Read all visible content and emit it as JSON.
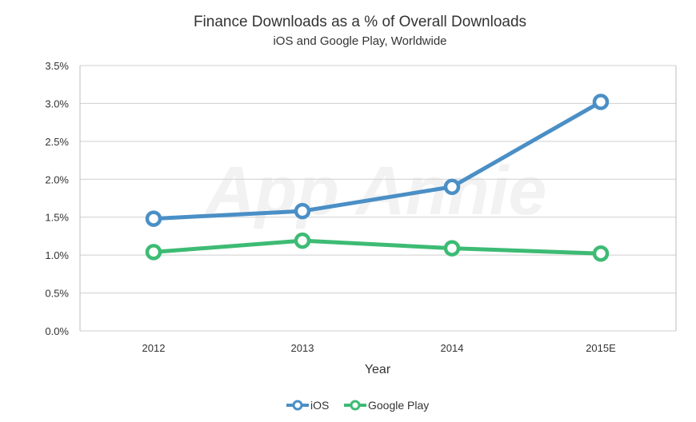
{
  "watermark": "App Annie",
  "chart_data": {
    "type": "line",
    "title": "Finance Downloads as a % of Overall Downloads",
    "subtitle": "iOS and Google Play, Worldwide",
    "xlabel": "Year",
    "ylabel": "",
    "categories": [
      "2012",
      "2013",
      "2014",
      "2015E"
    ],
    "ylim": [
      0,
      3.5
    ],
    "yticks": [
      0,
      0.5,
      1.0,
      1.5,
      2.0,
      2.5,
      3.0,
      3.5
    ],
    "ytick_labels": [
      "0.0%",
      "0.5%",
      "1.0%",
      "1.5%",
      "2.0%",
      "2.5%",
      "3.0%",
      "3.5%"
    ],
    "grid": true,
    "legend_position": "bottom-center",
    "series": [
      {
        "name": "iOS",
        "color": "#4a8fc6",
        "values": [
          1.48,
          1.58,
          1.9,
          3.02
        ]
      },
      {
        "name": "Google Play",
        "color": "#3dbb74",
        "values": [
          1.04,
          1.19,
          1.09,
          1.02
        ]
      }
    ]
  }
}
